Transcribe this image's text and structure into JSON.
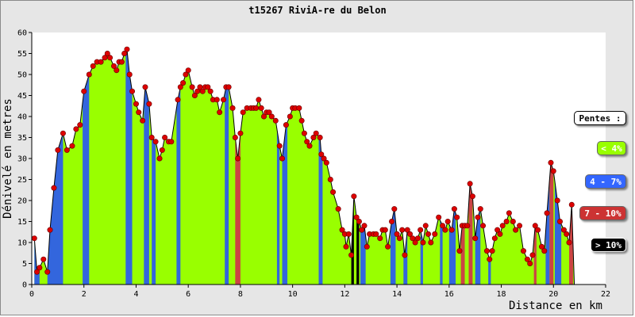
{
  "chart_data": {
    "type": "area",
    "title": "t15267 RiviA-re du Belon",
    "xlabel": "Distance en km",
    "ylabel": "Dénivelé en metres",
    "xlim": [
      0,
      22
    ],
    "ylim": [
      0,
      60
    ],
    "x_ticks": [
      0,
      2,
      4,
      6,
      8,
      10,
      12,
      14,
      16,
      18,
      20,
      22
    ],
    "y_ticks": [
      0,
      5,
      10,
      15,
      20,
      25,
      30,
      35,
      40,
      45,
      50,
      55,
      60
    ],
    "grid": false,
    "legend": {
      "title": "Pentes :",
      "position": "right",
      "entries": [
        {
          "label": "< 4%",
          "color": "#99ff00",
          "text_color": "#ffffff"
        },
        {
          "label": "4 - 7%",
          "color": "#3366ff",
          "text_color": "#ffffff"
        },
        {
          "label": "7 - 10%",
          "color": "#cc3333",
          "text_color": "#ffffff"
        },
        {
          "label": "> 10%",
          "color": "#000000",
          "text_color": "#ffffff"
        }
      ]
    },
    "fill_default": "#99ff00",
    "fill_blue": "#3366dd",
    "fill_red": "#cc4444",
    "fill_black": "#000000",
    "point_color": "#dd0000",
    "profile": [
      [
        0.1,
        11
      ],
      [
        0.2,
        3
      ],
      [
        0.3,
        4
      ],
      [
        0.45,
        6
      ],
      [
        0.6,
        3
      ],
      [
        0.7,
        13
      ],
      [
        0.85,
        23
      ],
      [
        1.0,
        32
      ],
      [
        1.2,
        36
      ],
      [
        1.35,
        32
      ],
      [
        1.55,
        33
      ],
      [
        1.7,
        37
      ],
      [
        1.85,
        38
      ],
      [
        2.0,
        46
      ],
      [
        2.2,
        50
      ],
      [
        2.35,
        52
      ],
      [
        2.5,
        53
      ],
      [
        2.65,
        53
      ],
      [
        2.8,
        54
      ],
      [
        2.9,
        55
      ],
      [
        3.0,
        54
      ],
      [
        3.15,
        52
      ],
      [
        3.25,
        51
      ],
      [
        3.35,
        53
      ],
      [
        3.45,
        53
      ],
      [
        3.55,
        55
      ],
      [
        3.65,
        56
      ],
      [
        3.75,
        50
      ],
      [
        3.85,
        46
      ],
      [
        4.0,
        43
      ],
      [
        4.1,
        41
      ],
      [
        4.25,
        39
      ],
      [
        4.35,
        47
      ],
      [
        4.5,
        43
      ],
      [
        4.6,
        35
      ],
      [
        4.75,
        34
      ],
      [
        4.9,
        30
      ],
      [
        5.0,
        32
      ],
      [
        5.1,
        35
      ],
      [
        5.25,
        34
      ],
      [
        5.35,
        34
      ],
      [
        5.6,
        44
      ],
      [
        5.7,
        47
      ],
      [
        5.8,
        48
      ],
      [
        5.9,
        50
      ],
      [
        6.0,
        51
      ],
      [
        6.15,
        47
      ],
      [
        6.25,
        45
      ],
      [
        6.35,
        46
      ],
      [
        6.45,
        47
      ],
      [
        6.55,
        46
      ],
      [
        6.65,
        47
      ],
      [
        6.75,
        47
      ],
      [
        6.85,
        46
      ],
      [
        6.95,
        44
      ],
      [
        7.1,
        44
      ],
      [
        7.2,
        41
      ],
      [
        7.35,
        44
      ],
      [
        7.45,
        47
      ],
      [
        7.55,
        47
      ],
      [
        7.7,
        42
      ],
      [
        7.8,
        35
      ],
      [
        7.9,
        30
      ],
      [
        8.0,
        36
      ],
      [
        8.1,
        41
      ],
      [
        8.25,
        42
      ],
      [
        8.4,
        42
      ],
      [
        8.5,
        42
      ],
      [
        8.6,
        42
      ],
      [
        8.7,
        44
      ],
      [
        8.8,
        42
      ],
      [
        8.9,
        40
      ],
      [
        9.0,
        41
      ],
      [
        9.1,
        41
      ],
      [
        9.2,
        40
      ],
      [
        9.35,
        39
      ],
      [
        9.5,
        33
      ],
      [
        9.6,
        30
      ],
      [
        9.75,
        38
      ],
      [
        9.9,
        40
      ],
      [
        10.0,
        42
      ],
      [
        10.1,
        42
      ],
      [
        10.25,
        42
      ],
      [
        10.35,
        39
      ],
      [
        10.45,
        36
      ],
      [
        10.55,
        34
      ],
      [
        10.65,
        33
      ],
      [
        10.8,
        35
      ],
      [
        10.9,
        36
      ],
      [
        11.05,
        35
      ],
      [
        11.1,
        31
      ],
      [
        11.2,
        30
      ],
      [
        11.3,
        29
      ],
      [
        11.45,
        25
      ],
      [
        11.55,
        22
      ],
      [
        11.75,
        18
      ],
      [
        11.9,
        13
      ],
      [
        12.0,
        12
      ],
      [
        12.05,
        9
      ],
      [
        12.15,
        12
      ],
      [
        12.25,
        7
      ],
      [
        12.35,
        21
      ],
      [
        12.45,
        16
      ],
      [
        12.55,
        15
      ],
      [
        12.65,
        13
      ],
      [
        12.75,
        14
      ],
      [
        12.85,
        9
      ],
      [
        12.95,
        12
      ],
      [
        13.1,
        12
      ],
      [
        13.2,
        12
      ],
      [
        13.35,
        11
      ],
      [
        13.45,
        13
      ],
      [
        13.55,
        13
      ],
      [
        13.65,
        9
      ],
      [
        13.8,
        15
      ],
      [
        13.9,
        18
      ],
      [
        14.0,
        12
      ],
      [
        14.1,
        11
      ],
      [
        14.2,
        13
      ],
      [
        14.3,
        7
      ],
      [
        14.4,
        13
      ],
      [
        14.5,
        12
      ],
      [
        14.6,
        11
      ],
      [
        14.7,
        10
      ],
      [
        14.8,
        11
      ],
      [
        14.9,
        13
      ],
      [
        15.0,
        10
      ],
      [
        15.1,
        14
      ],
      [
        15.2,
        12
      ],
      [
        15.3,
        10
      ],
      [
        15.45,
        12
      ],
      [
        15.6,
        16
      ],
      [
        15.75,
        14
      ],
      [
        15.85,
        13
      ],
      [
        15.95,
        15
      ],
      [
        16.1,
        13
      ],
      [
        16.2,
        18
      ],
      [
        16.3,
        16
      ],
      [
        16.4,
        8
      ],
      [
        16.5,
        14
      ],
      [
        16.6,
        14
      ],
      [
        16.7,
        14
      ],
      [
        16.8,
        24
      ],
      [
        16.9,
        21
      ],
      [
        17.0,
        11
      ],
      [
        17.1,
        16
      ],
      [
        17.2,
        18
      ],
      [
        17.3,
        14
      ],
      [
        17.45,
        8
      ],
      [
        17.55,
        6
      ],
      [
        17.65,
        8
      ],
      [
        17.75,
        11
      ],
      [
        17.85,
        13
      ],
      [
        17.95,
        12
      ],
      [
        18.05,
        14
      ],
      [
        18.2,
        15
      ],
      [
        18.3,
        17
      ],
      [
        18.45,
        15
      ],
      [
        18.55,
        13
      ],
      [
        18.7,
        14
      ],
      [
        18.85,
        8
      ],
      [
        19.0,
        6
      ],
      [
        19.1,
        5
      ],
      [
        19.2,
        7
      ],
      [
        19.3,
        14
      ],
      [
        19.4,
        13
      ],
      [
        19.55,
        9
      ],
      [
        19.65,
        8
      ],
      [
        19.75,
        17
      ],
      [
        19.9,
        29
      ],
      [
        20.0,
        27
      ],
      [
        20.15,
        20
      ],
      [
        20.25,
        15
      ],
      [
        20.4,
        13
      ],
      [
        20.5,
        12
      ],
      [
        20.6,
        10
      ],
      [
        20.7,
        19
      ],
      [
        20.8,
        0
      ]
    ],
    "slope_bands": [
      {
        "from": 0.1,
        "to": 0.3,
        "color": "blue"
      },
      {
        "from": 0.6,
        "to": 1.2,
        "color": "blue"
      },
      {
        "from": 1.95,
        "to": 2.2,
        "color": "blue"
      },
      {
        "from": 3.6,
        "to": 3.85,
        "color": "blue"
      },
      {
        "from": 4.3,
        "to": 4.5,
        "color": "blue"
      },
      {
        "from": 4.6,
        "to": 4.75,
        "color": "blue"
      },
      {
        "from": 5.55,
        "to": 5.7,
        "color": "blue"
      },
      {
        "from": 7.4,
        "to": 7.55,
        "color": "blue"
      },
      {
        "from": 7.8,
        "to": 8.0,
        "color": "red"
      },
      {
        "from": 9.4,
        "to": 9.5,
        "color": "blue"
      },
      {
        "from": 9.6,
        "to": 9.8,
        "color": "blue"
      },
      {
        "from": 11.0,
        "to": 11.15,
        "color": "blue"
      },
      {
        "from": 12.25,
        "to": 12.35,
        "color": "black"
      },
      {
        "from": 12.45,
        "to": 12.55,
        "color": "black"
      },
      {
        "from": 12.6,
        "to": 12.8,
        "color": "blue"
      },
      {
        "from": 13.75,
        "to": 13.95,
        "color": "blue"
      },
      {
        "from": 14.25,
        "to": 14.4,
        "color": "blue"
      },
      {
        "from": 14.9,
        "to": 15.0,
        "color": "blue"
      },
      {
        "from": 15.65,
        "to": 15.75,
        "color": "blue"
      },
      {
        "from": 16.0,
        "to": 16.25,
        "color": "blue"
      },
      {
        "from": 16.45,
        "to": 16.6,
        "color": "red"
      },
      {
        "from": 16.75,
        "to": 16.9,
        "color": "red"
      },
      {
        "from": 17.0,
        "to": 17.2,
        "color": "blue"
      },
      {
        "from": 17.5,
        "to": 17.6,
        "color": "blue"
      },
      {
        "from": 19.25,
        "to": 19.35,
        "color": "red"
      },
      {
        "from": 19.7,
        "to": 19.85,
        "color": "blue"
      },
      {
        "from": 19.85,
        "to": 20.0,
        "color": "red"
      },
      {
        "from": 20.05,
        "to": 20.3,
        "color": "blue"
      },
      {
        "from": 20.6,
        "to": 20.75,
        "color": "red"
      }
    ]
  }
}
